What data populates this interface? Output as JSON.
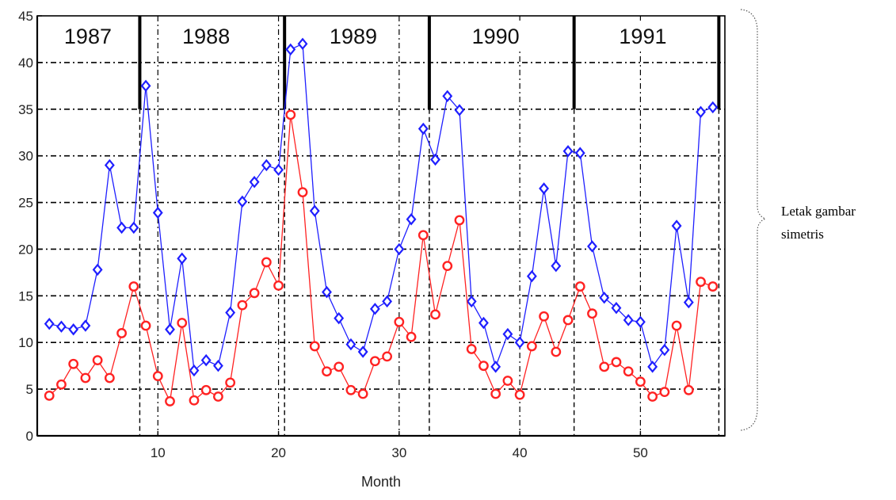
{
  "chart_data": {
    "type": "line",
    "xlabel": "Month",
    "ylabel": "",
    "xlim": [
      0,
      57
    ],
    "ylim": [
      0,
      45
    ],
    "grid": true,
    "xticks": [
      10,
      20,
      30,
      40,
      50
    ],
    "yticks": [
      0,
      5,
      10,
      15,
      20,
      25,
      30,
      35,
      40,
      45
    ],
    "year_labels": [
      {
        "label": "1987",
        "center": 4.2
      },
      {
        "label": "1988",
        "center": 14.0
      },
      {
        "label": "1989",
        "center": 26.2
      },
      {
        "label": "1990",
        "center": 38.0
      },
      {
        "label": "1991",
        "center": 50.2
      }
    ],
    "year_boundaries": [
      8.5,
      20.5,
      32.5,
      44.5,
      56.5
    ],
    "series": [
      {
        "color": "#1f1fff",
        "marker": "diamond",
        "x": [
          1,
          2,
          3,
          4,
          5,
          6,
          7,
          8,
          9,
          10,
          11,
          12,
          13,
          14,
          15,
          16,
          17,
          18,
          19,
          20,
          21,
          22,
          23,
          24,
          25,
          26,
          27,
          28,
          29,
          30,
          31,
          32,
          33,
          34,
          35,
          36,
          37,
          38,
          39,
          40,
          41,
          42,
          43,
          44,
          45,
          46,
          47,
          48,
          49,
          50,
          51,
          52,
          53,
          54,
          55,
          56
        ],
        "values": [
          12,
          11.7,
          11.4,
          11.8,
          17.8,
          29,
          22.3,
          22.3,
          37.5,
          23.9,
          11.4,
          19,
          7,
          8.1,
          7.5,
          13.2,
          25.1,
          27.2,
          29,
          28.5,
          41.4,
          42,
          24.1,
          15.4,
          12.6,
          9.8,
          9,
          13.6,
          14.4,
          20,
          23.2,
          32.9,
          29.6,
          36.4,
          34.9,
          14.4,
          12.1,
          7.4,
          10.9,
          10,
          17.1,
          26.5,
          18.2,
          30.5,
          30.3,
          20.3,
          14.8,
          13.7,
          12.4,
          12.2,
          7.4,
          9.2,
          22.5,
          14.3,
          34.7,
          35.2
        ]
      },
      {
        "color": "#ff2222",
        "marker": "circle",
        "x": [
          1,
          2,
          3,
          4,
          5,
          6,
          7,
          8,
          9,
          10,
          11,
          12,
          13,
          14,
          15,
          16,
          17,
          18,
          19,
          20,
          21,
          22,
          23,
          24,
          25,
          26,
          27,
          28,
          29,
          30,
          31,
          32,
          33,
          34,
          35,
          36,
          37,
          38,
          39,
          40,
          41,
          42,
          43,
          44,
          45,
          46,
          47,
          48,
          49,
          50,
          51,
          52,
          53,
          54,
          55,
          56
        ],
        "values": [
          4.3,
          5.5,
          7.7,
          6.2,
          8.1,
          6.2,
          11,
          16,
          11.8,
          6.4,
          3.7,
          12.1,
          3.8,
          4.9,
          4.2,
          5.7,
          14,
          15.3,
          18.6,
          16.1,
          34.4,
          26.1,
          9.6,
          6.9,
          7.4,
          4.9,
          4.5,
          8,
          8.5,
          12.2,
          10.6,
          21.5,
          13,
          18.2,
          23.1,
          9.3,
          7.5,
          4.5,
          5.9,
          4.4,
          9.6,
          12.8,
          9,
          12.4,
          16,
          13.1,
          7.4,
          7.9,
          6.9,
          5.8,
          4.2,
          4.7,
          11.8,
          4.9,
          16.5,
          16
        ]
      }
    ]
  },
  "annotation": {
    "text_line1": "Letak gambar",
    "text_line2": "simetris"
  }
}
